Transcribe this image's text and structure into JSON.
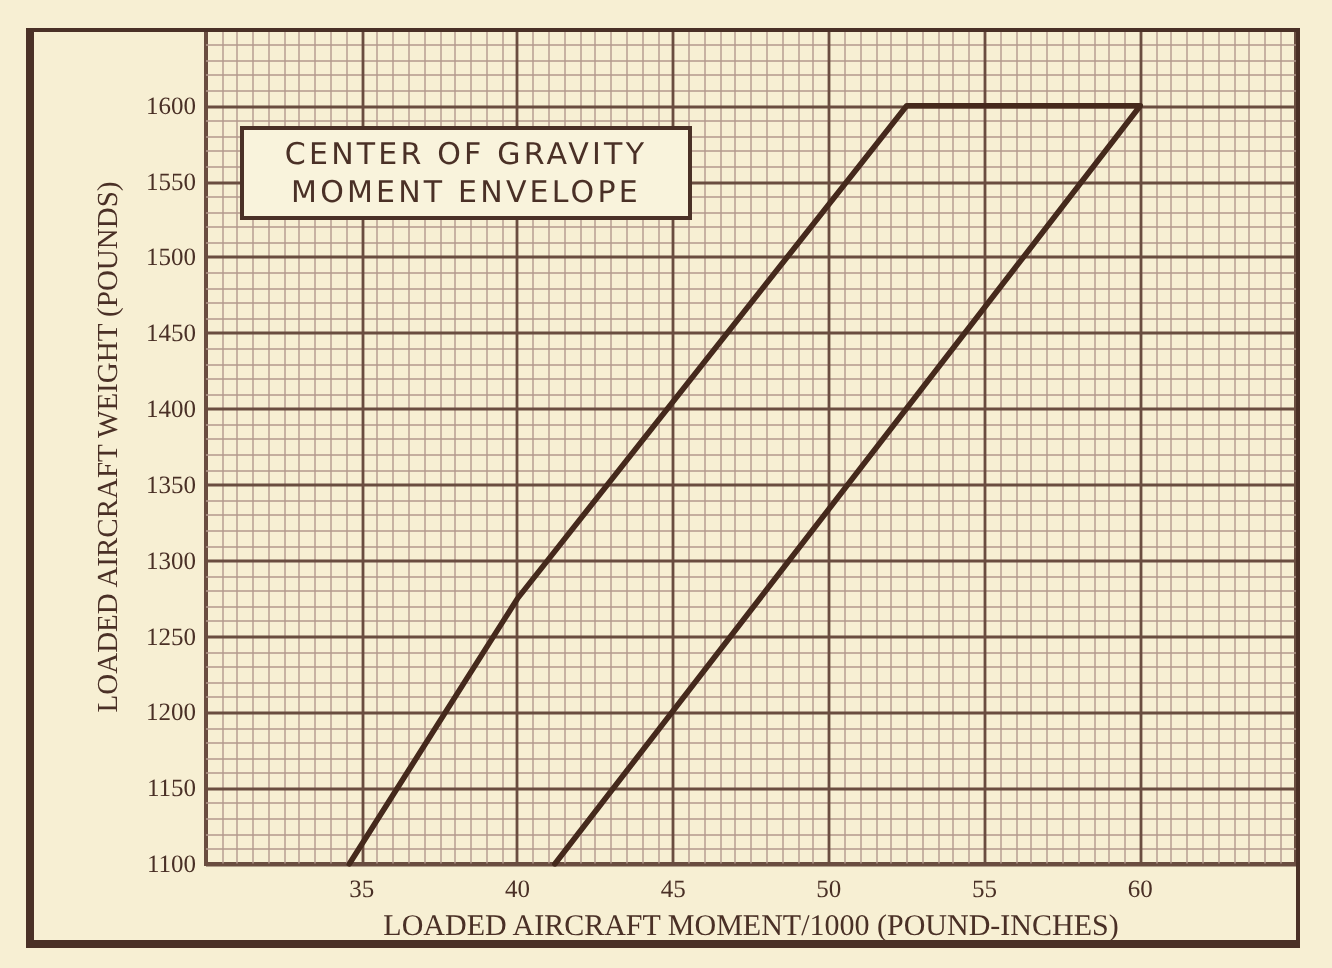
{
  "chart_data": {
    "type": "line",
    "title": "CENTER OF GRAVITY MOMENT ENVELOPE",
    "xlabel": "LOADED AIRCRAFT MOMENT/1000 (POUND-INCHES)",
    "ylabel": "LOADED AIRCRAFT WEIGHT (POUNDS)",
    "series": [
      {
        "color": "#45291c",
        "x": [
          34.6,
          40,
          52.5,
          60,
          41.2
        ],
        "values": [
          1100,
          1275,
          1600,
          1600,
          1100
        ]
      }
    ],
    "xlim": [
      30,
      65
    ],
    "xticks": [
      {
        "value": 30.5,
        "label": null
      },
      {
        "value": 31,
        "label": null
      },
      {
        "value": 31.5,
        "label": null
      },
      {
        "value": 32,
        "label": null
      },
      {
        "value": 32.5,
        "label": null
      },
      {
        "value": 33,
        "label": null
      },
      {
        "value": 33.5,
        "label": null
      },
      {
        "value": 34,
        "label": null
      },
      {
        "value": 34.5,
        "label": null
      },
      35,
      {
        "value": 35.5,
        "label": null
      },
      {
        "value": 36,
        "label": null
      },
      {
        "value": 36.5,
        "label": null
      },
      {
        "value": 37,
        "label": null
      },
      {
        "value": 37.5,
        "label": null
      },
      {
        "value": 38,
        "label": null
      },
      {
        "value": 38.5,
        "label": null
      },
      {
        "value": 39,
        "label": null
      },
      {
        "value": 39.5,
        "label": null
      },
      40,
      {
        "value": 40.5,
        "label": null
      },
      {
        "value": 41,
        "label": null
      },
      {
        "value": 41.5,
        "label": null
      },
      {
        "value": 42,
        "label": null
      },
      {
        "value": 42.5,
        "label": null
      },
      {
        "value": 43,
        "label": null
      },
      {
        "value": 43.5,
        "label": null
      },
      {
        "value": 44,
        "label": null
      },
      {
        "value": 44.5,
        "label": null
      },
      45,
      {
        "value": 45.5,
        "label": null
      },
      {
        "value": 46,
        "label": null
      },
      {
        "value": 46.5,
        "label": null
      },
      {
        "value": 47,
        "label": null
      },
      {
        "value": 47.5,
        "label": null
      },
      {
        "value": 48,
        "label": null
      },
      {
        "value": 48.5,
        "label": null
      },
      {
        "value": 49,
        "label": null
      },
      {
        "value": 49.5,
        "label": null
      },
      50,
      {
        "value": 50.5,
        "label": null
      },
      {
        "value": 51,
        "label": null
      },
      {
        "value": 51.5,
        "label": null
      },
      {
        "value": 52,
        "label": null
      },
      {
        "value": 52.5,
        "label": null
      },
      {
        "value": 53,
        "label": null
      },
      {
        "value": 53.5,
        "label": null
      },
      {
        "value": 54,
        "label": null
      },
      {
        "value": 54.5,
        "label": null
      },
      55,
      {
        "value": 55.5,
        "label": null
      },
      {
        "value": 56,
        "label": null
      },
      {
        "value": 56.5,
        "label": null
      },
      {
        "value": 57,
        "label": null
      },
      {
        "value": 57.5,
        "label": null
      },
      {
        "value": 58,
        "label": null
      },
      {
        "value": 58.5,
        "label": null
      },
      {
        "value": 59,
        "label": null
      },
      {
        "value": 59.5,
        "label": null
      },
      60,
      {
        "value": 60.5,
        "label": null
      },
      {
        "value": 61,
        "label": null
      },
      {
        "value": 61.5,
        "label": null
      },
      {
        "value": 62,
        "label": null
      },
      {
        "value": 62.5,
        "label": null
      },
      {
        "value": 63,
        "label": null
      },
      {
        "value": 63.5,
        "label": null
      },
      {
        "value": 64,
        "label": null
      },
      {
        "value": 64.5,
        "label": null
      }
    ],
    "ylim": [
      1100,
      1650
    ],
    "yticks": [
      1100,
      {
        "value": 1110,
        "label": null
      },
      {
        "value": 1120,
        "label": null
      },
      {
        "value": 1130,
        "label": null
      },
      {
        "value": 1140,
        "label": null
      },
      1150,
      {
        "value": 1160,
        "label": null
      },
      {
        "value": 1170,
        "label": null
      },
      {
        "value": 1180,
        "label": null
      },
      {
        "value": 1190,
        "label": null
      },
      1200,
      {
        "value": 1210,
        "label": null
      },
      {
        "value": 1220,
        "label": null
      },
      {
        "value": 1230,
        "label": null
      },
      {
        "value": 1240,
        "label": null
      },
      1250,
      {
        "value": 1260,
        "label": null
      },
      {
        "value": 1270,
        "label": null
      },
      {
        "value": 1280,
        "label": null
      },
      {
        "value": 1290,
        "label": null
      },
      1300,
      {
        "value": 1310,
        "label": null
      },
      {
        "value": 1320,
        "label": null
      },
      {
        "value": 1330,
        "label": null
      },
      {
        "value": 1340,
        "label": null
      },
      1350,
      {
        "value": 1360,
        "label": null
      },
      {
        "value": 1370,
        "label": null
      },
      {
        "value": 1380,
        "label": null
      },
      {
        "value": 1390,
        "label": null
      },
      1400,
      {
        "value": 1410,
        "label": null
      },
      {
        "value": 1420,
        "label": null
      },
      {
        "value": 1430,
        "label": null
      },
      {
        "value": 1440,
        "label": null
      },
      1450,
      {
        "value": 1460,
        "label": null
      },
      {
        "value": 1470,
        "label": null
      },
      {
        "value": 1480,
        "label": null
      },
      {
        "value": 1490,
        "label": null
      },
      1500,
      {
        "value": 1510,
        "label": null
      },
      {
        "value": 1520,
        "label": null
      },
      {
        "value": 1530,
        "label": null
      },
      {
        "value": 1540,
        "label": null
      },
      1550,
      {
        "value": 1560,
        "label": null
      },
      {
        "value": 1570,
        "label": null
      },
      {
        "value": 1580,
        "label": null
      },
      {
        "value": 1590,
        "label": null
      },
      1600,
      {
        "value": 1610,
        "label": null
      },
      {
        "value": 1620,
        "label": null
      },
      {
        "value": 1630,
        "label": null
      },
      {
        "value": 1640,
        "label": null
      }
    ],
    "grid": true,
    "marker": "none",
    "line_style": "solid"
  }
}
